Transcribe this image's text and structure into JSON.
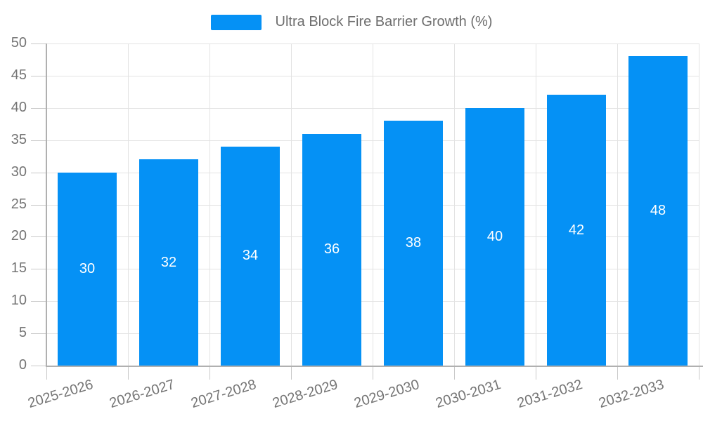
{
  "chart_data": {
    "type": "bar",
    "title": "",
    "categories": [
      "2025-2026",
      "2026-2027",
      "2027-2028",
      "2028-2029",
      "2029-2030",
      "2030-2031",
      "2031-2032",
      "2032-2033"
    ],
    "series": [
      {
        "name": "Ultra Block Fire Barrier Growth (%)",
        "values": [
          30,
          32,
          34,
          36,
          38,
          40,
          42,
          48
        ],
        "color": "#0591f5"
      }
    ],
    "xlabel": "",
    "ylabel": "",
    "ylim": [
      0,
      50
    ],
    "yticks": [
      0,
      5,
      10,
      15,
      20,
      25,
      30,
      35,
      40,
      45,
      50
    ],
    "legend": {
      "position": "top",
      "items": [
        "Ultra Block Fire Barrier Growth (%)"
      ]
    },
    "value_labels": {
      "show": true,
      "position": "inside-center",
      "color": "#ffffff"
    },
    "grid": {
      "horizontal": true,
      "vertical": true,
      "color": "#e3e3e3"
    },
    "axis": {
      "line_color": "#b0b0b0",
      "tick_color": "#c9c9c9",
      "label_color": "#757575",
      "x_label_rotation_deg": -17
    },
    "background": "#ffffff"
  }
}
